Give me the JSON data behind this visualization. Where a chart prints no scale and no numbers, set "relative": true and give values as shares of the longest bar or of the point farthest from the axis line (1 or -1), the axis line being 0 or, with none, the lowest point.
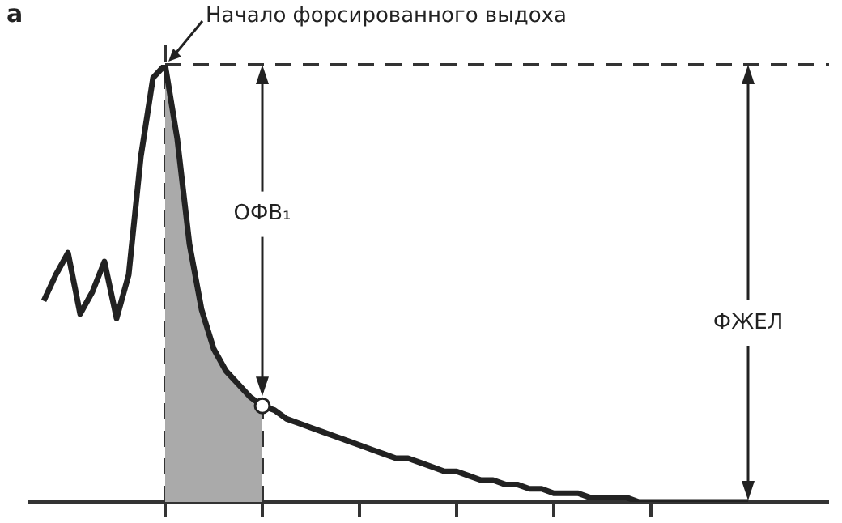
{
  "chart_data": {
    "type": "line",
    "relative": true,
    "categories": [
      null,
      null,
      null,
      null,
      null,
      null,
      null,
      null,
      null,
      null,
      null,
      null,
      null,
      null,
      null,
      null,
      null,
      null,
      null,
      null,
      null,
      null,
      null,
      null,
      null,
      null,
      null,
      null,
      null,
      null,
      null,
      null,
      null,
      null,
      null,
      null,
      null,
      null,
      null,
      null,
      null,
      null,
      null,
      null,
      null,
      null,
      null,
      null,
      null,
      null,
      null,
      null,
      null,
      null,
      null,
      null,
      null,
      null,
      null
    ],
    "series": [
      {
        "type": "area",
        "color": "#aaaaaa",
        "values": [
          null,
          null,
          null,
          null,
          null,
          null,
          null,
          null,
          null,
          null,
          1,
          0.83,
          0.59,
          0.44,
          0.35,
          0.3,
          0.27,
          0.24,
          0.22,
          null,
          null,
          null,
          null,
          null,
          null,
          null,
          null,
          null,
          null,
          null,
          null,
          null,
          null,
          null,
          null,
          null,
          null,
          null,
          null,
          null,
          null,
          null,
          null,
          null,
          null,
          null,
          null,
          null,
          null,
          null,
          null,
          null,
          null,
          null,
          null,
          null,
          null,
          null,
          null
        ]
      },
      {
        "color": "#222222",
        "line_style": "solid",
        "values": [
          0.46,
          0.52,
          0.57,
          0.43,
          0.48,
          0.55,
          0.42,
          0.52,
          0.79,
          0.97,
          1,
          0.83,
          0.59,
          0.44,
          0.35,
          0.3,
          0.27,
          0.24,
          0.22,
          0.21,
          0.19,
          0.18,
          0.17,
          0.16,
          0.15,
          0.14,
          0.13,
          0.12,
          0.11,
          0.1,
          0.1,
          0.09,
          0.08,
          0.07,
          0.07,
          0.06,
          0.05,
          0.05,
          0.04,
          0.04,
          0.03,
          0.03,
          0.02,
          0.02,
          0.02,
          0.01,
          0.01,
          0.01,
          0.01,
          0,
          0,
          0,
          0,
          0,
          0,
          0,
          0,
          0,
          0
        ]
      }
    ],
    "ref_lines": [
      {
        "axis": "y",
        "value": 1,
        "line_style": "dashed",
        "color": "#333333"
      }
    ],
    "annotations": [
      "а",
      {
        "text": "Начало форсированного выдоха",
        "y": 1
      },
      "ОФВ₁",
      "ФЖЕЛ"
    ]
  }
}
